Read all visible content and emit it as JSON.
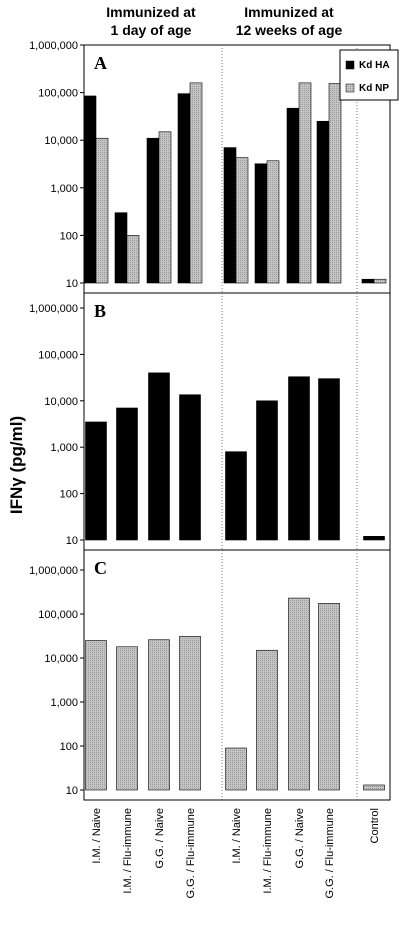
{
  "chart_data": {
    "type": "bar",
    "group_headers": [
      [
        "Immunized at",
        "1 day of age"
      ],
      [
        "Immunized at",
        "12 weeks of age"
      ]
    ],
    "ylabel": "IFNγ (pg/ml)",
    "yscale": "log",
    "ylim": [
      10,
      1000000
    ],
    "yticks": [
      10,
      100,
      1000,
      10000,
      100000,
      1000000
    ],
    "ytick_labels": [
      "10",
      "100",
      "1,000",
      "10,000",
      "100,000",
      "1,000,000"
    ],
    "categories": [
      "I.M. / Naive",
      "I.M. / Flu-immune",
      "G.G. / Naive",
      "G.G. / Flu-immune",
      "I.M. / Naive",
      "I.M. / Flu-immune",
      "G.G. / Naive",
      "G.G. / Flu-immune",
      "Control"
    ],
    "legend": {
      "placement": "top-right",
      "entries": [
        {
          "label": "Kd HA",
          "color": "#000000"
        },
        {
          "label": "Kd NP",
          "color": "#bdbdbd"
        }
      ]
    },
    "grid": false,
    "panels": [
      {
        "label": "A",
        "series": [
          {
            "name": "Kd HA",
            "color": "#000000",
            "values": [
              85000,
              300,
              11000,
              95000,
              7000,
              3200,
              47000,
              25000,
              12
            ]
          },
          {
            "name": "Kd NP",
            "color": "#bdbdbd",
            "values": [
              11000,
              100,
              15000,
              160000,
              4300,
              3700,
              160000,
              155000,
              12
            ]
          }
        ]
      },
      {
        "label": "B",
        "series": [
          {
            "name": "Kd HA",
            "color": "#000000",
            "values": [
              3500,
              7000,
              40000,
              13500,
              800,
              10000,
              33000,
              30000,
              12
            ]
          }
        ]
      },
      {
        "label": "C",
        "series": [
          {
            "name": "Kd NP",
            "color": "#bdbdbd",
            "values": [
              25000,
              18000,
              26000,
              31000,
              90,
              15000,
              230000,
              175000,
              13
            ]
          }
        ]
      }
    ]
  }
}
